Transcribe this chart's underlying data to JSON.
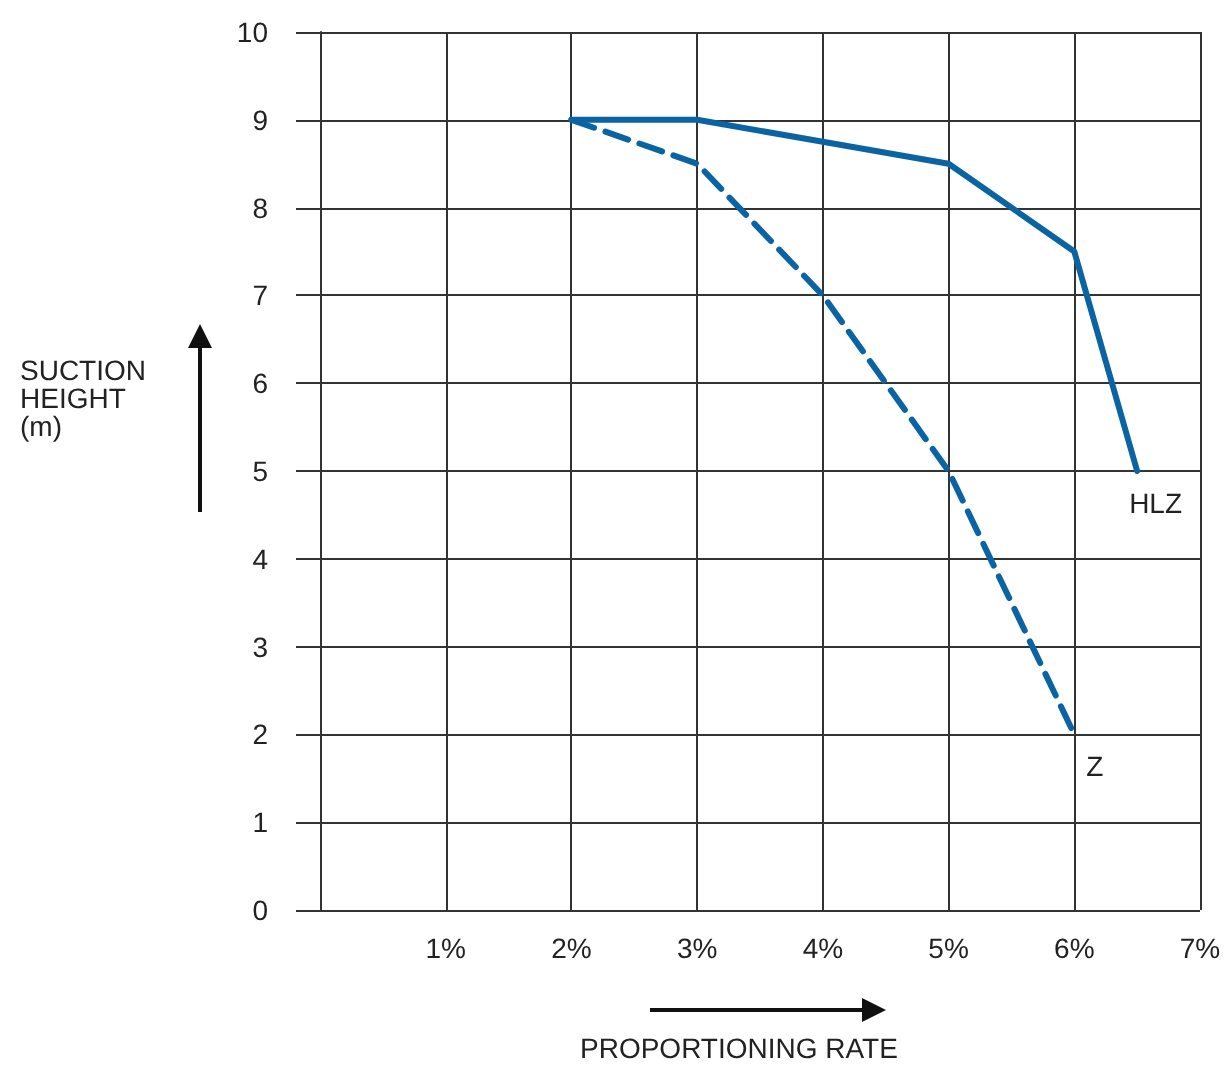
{
  "chart_data": {
    "type": "line",
    "xlabel": "PROPORTIONING RATE",
    "ylabel": "SUCTION\nHEIGHT\n(m)",
    "xlim": [
      0,
      7
    ],
    "xticks": [
      {
        "value": 0,
        "label": null
      },
      {
        "value": 1,
        "label": "1%"
      },
      {
        "value": 2,
        "label": "2%"
      },
      {
        "value": 3,
        "label": "3%"
      },
      {
        "value": 4,
        "label": "4%"
      },
      {
        "value": 5,
        "label": "5%"
      },
      {
        "value": 6,
        "label": "6%"
      },
      {
        "value": 7,
        "label": "7%"
      }
    ],
    "ylim": [
      0,
      10
    ],
    "yticks": [
      0,
      1,
      2,
      3,
      4,
      5,
      6,
      7,
      8,
      9,
      10
    ],
    "grid": true,
    "legend": false,
    "marker": "none",
    "series": [
      {
        "name": "HLZ",
        "color": "#0a64a4",
        "line_style": "solid",
        "x": [
          2,
          3,
          4,
          5,
          6,
          6.5
        ],
        "values": [
          9,
          9,
          8.75,
          8.5,
          7.5,
          5
        ]
      },
      {
        "name": "Z",
        "color": "#0a64a4",
        "line_style": "dashed",
        "x": [
          2,
          3,
          4,
          5,
          6
        ],
        "values": [
          9,
          8.5,
          7,
          5,
          2
        ]
      }
    ]
  }
}
